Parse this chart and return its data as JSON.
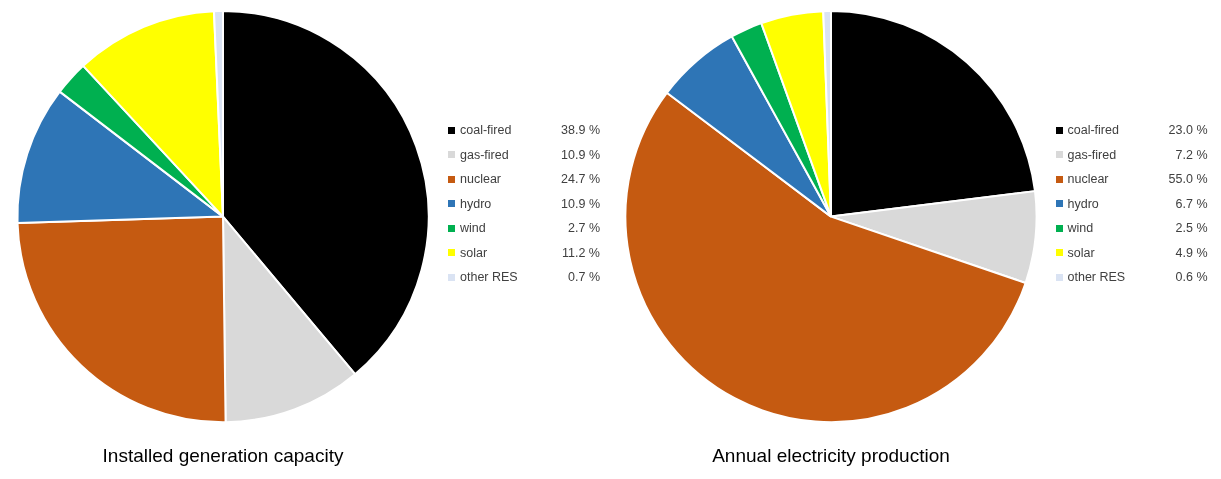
{
  "chart_data": [
    {
      "type": "pie",
      "title": "Installed generation capacity",
      "categories": [
        "coal-fired",
        "gas-fired",
        "nuclear",
        "hydro",
        "wind",
        "solar",
        "other RES"
      ],
      "values": [
        38.9,
        10.9,
        24.7,
        10.9,
        2.7,
        11.2,
        0.7
      ],
      "value_labels": [
        "38.9 %",
        "10.9 %",
        "24.7 %",
        "10.9 %",
        "2.7 %",
        "11.2 %",
        "0.7 %"
      ],
      "colors": [
        "#000000",
        "#d9d9d9",
        "#c55a11",
        "#2e75b6",
        "#00b050",
        "#ffff00",
        "#dae3f3"
      ],
      "legend": "right"
    },
    {
      "type": "pie",
      "title": "Annual electricity production",
      "categories": [
        "coal-fired",
        "gas-fired",
        "nuclear",
        "hydro",
        "wind",
        "solar",
        "other RES"
      ],
      "values": [
        23.0,
        7.2,
        55.0,
        6.7,
        2.5,
        4.9,
        0.6
      ],
      "value_labels": [
        "23.0 %",
        "7.2 %",
        "55.0 %",
        "6.7 %",
        "2.5 %",
        "4.9 %",
        "0.6 %"
      ],
      "colors": [
        "#000000",
        "#d9d9d9",
        "#c55a11",
        "#2e75b6",
        "#00b050",
        "#ffff00",
        "#dae3f3"
      ],
      "legend": "right"
    }
  ]
}
